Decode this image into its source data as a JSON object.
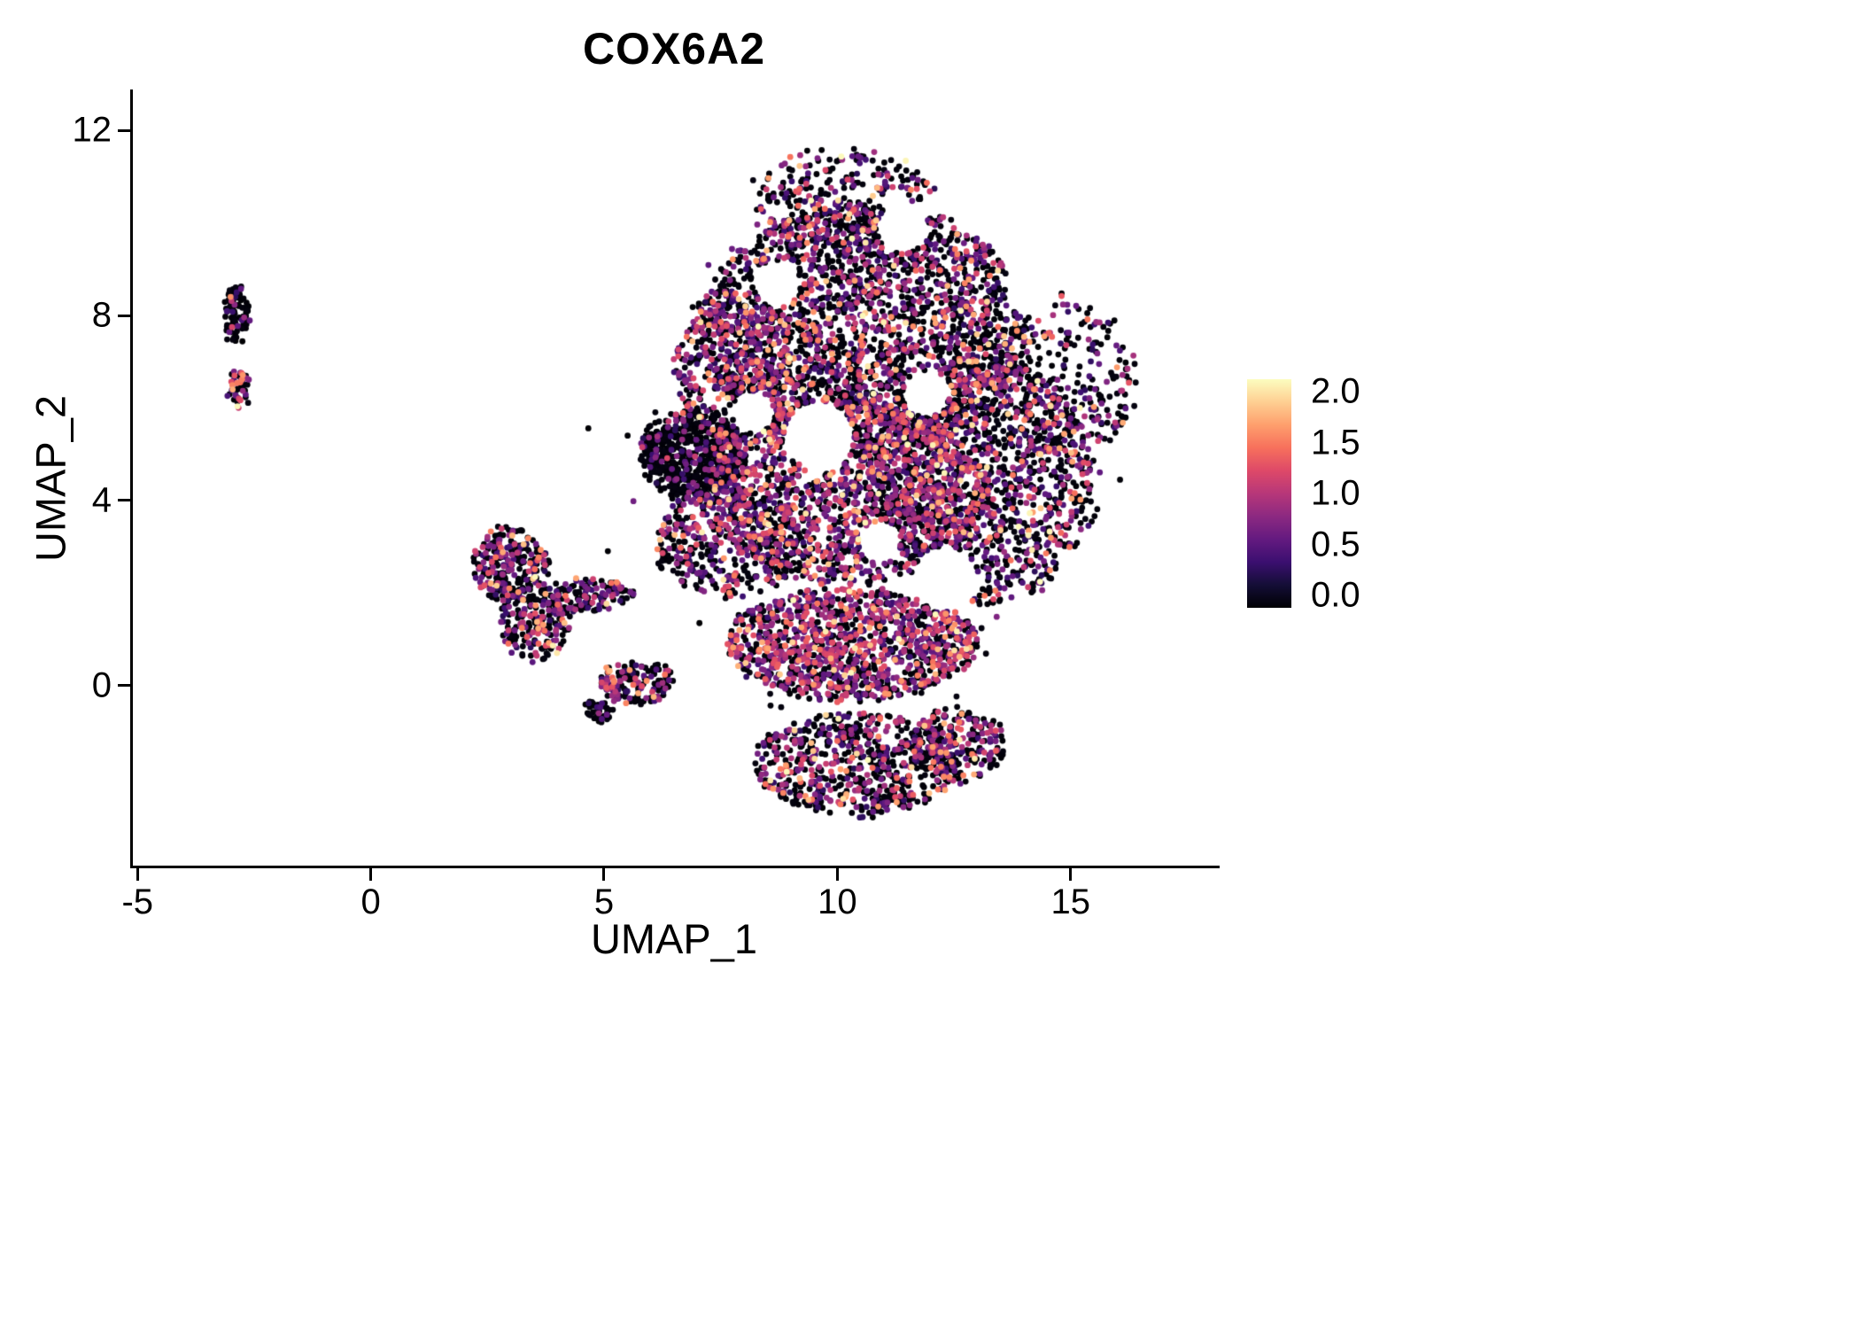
{
  "page": {
    "background": "#ffffff"
  },
  "chart_data": {
    "type": "scatter",
    "title": "COX6A2",
    "xlabel": "UMAP_1",
    "ylabel": "UMAP_2",
    "xlim": [
      -5.1,
      18.1
    ],
    "ylim": [
      -3.9,
      12.85
    ],
    "grid": false,
    "xticks": [
      {
        "value": -5,
        "label": "-5"
      },
      {
        "value": 0,
        "label": "0"
      },
      {
        "value": 5,
        "label": "5"
      },
      {
        "value": 10,
        "label": "10"
      },
      {
        "value": 15,
        "label": "15"
      }
    ],
    "yticks": [
      {
        "value": 0,
        "label": "0"
      },
      {
        "value": 4,
        "label": "4"
      },
      {
        "value": 8,
        "label": "8"
      },
      {
        "value": 12,
        "label": "12"
      }
    ],
    "colorbar": {
      "position": "right",
      "min": 0,
      "max": 2,
      "labels": [
        {
          "value": 2.0,
          "label": "2.0"
        },
        {
          "value": 1.5,
          "label": "1.5"
        },
        {
          "value": 1.0,
          "label": "1.0"
        },
        {
          "value": 0.5,
          "label": "0.5"
        },
        {
          "value": 0.0,
          "label": "0.0"
        }
      ]
    },
    "palette": {
      "name": "magma",
      "stops": [
        "#000004",
        "#140e36",
        "#3b0f70",
        "#641a80",
        "#8c2981",
        "#b73779",
        "#de4968",
        "#f7705c",
        "#fe9f6d",
        "#fecf92",
        "#fcfdbf"
      ]
    },
    "point_radius_px": 3.4,
    "seed": 20240521,
    "expression_mixes": {
      "default": [
        [
          0.56,
          0.0,
          0.05
        ],
        [
          0.26,
          0.3,
          0.85
        ],
        [
          0.11,
          0.85,
          1.25
        ],
        [
          0.05,
          1.25,
          1.65
        ],
        [
          0.02,
          1.65,
          2.0
        ]
      ],
      "dark": [
        [
          0.82,
          0.0,
          0.05
        ],
        [
          0.13,
          0.3,
          0.8
        ],
        [
          0.04,
          0.8,
          1.2
        ],
        [
          0.01,
          1.2,
          1.6
        ]
      ],
      "rich": [
        [
          0.38,
          0.0,
          0.05
        ],
        [
          0.34,
          0.35,
          0.9
        ],
        [
          0.2,
          0.9,
          1.3
        ],
        [
          0.06,
          1.3,
          1.7
        ],
        [
          0.02,
          1.7,
          2.0
        ]
      ]
    },
    "clusters": [
      {
        "name": "main-top",
        "n": 2500,
        "cx": 10.6,
        "cy": 7.7,
        "rx": 3.5,
        "ry": 2.7,
        "mix": "default"
      },
      {
        "name": "main-top-crown",
        "n": 300,
        "cx": 10.1,
        "cy": 10.5,
        "rx": 2.0,
        "ry": 1.1,
        "mix": "default"
      },
      {
        "name": "main-mid",
        "n": 1600,
        "cx": 10.2,
        "cy": 4.2,
        "rx": 3.0,
        "ry": 2.0,
        "mix": "rich"
      },
      {
        "name": "main-right",
        "n": 1300,
        "cx": 13.2,
        "cy": 4.4,
        "rx": 2.3,
        "ry": 2.7,
        "mix": "default"
      },
      {
        "name": "right-east",
        "n": 260,
        "cx": 14.9,
        "cy": 6.6,
        "rx": 1.5,
        "ry": 1.9,
        "mix": "default"
      },
      {
        "name": "main-lower-band",
        "n": 1200,
        "cx": 10.3,
        "cy": 0.9,
        "rx": 2.7,
        "ry": 1.2,
        "mix": "rich"
      },
      {
        "name": "bottom-lobe",
        "n": 700,
        "cx": 10.4,
        "cy": -1.7,
        "rx": 2.2,
        "ry": 1.1,
        "mix": "default"
      },
      {
        "name": "bottom-lobe-right",
        "n": 240,
        "cx": 12.6,
        "cy": -1.3,
        "rx": 1.0,
        "ry": 0.8,
        "mix": "default"
      },
      {
        "name": "left-dark-clump",
        "n": 620,
        "cx": 6.9,
        "cy": 5.0,
        "rx": 1.1,
        "ry": 0.95,
        "mix": "dark"
      },
      {
        "name": "left-upper-fill",
        "n": 420,
        "cx": 7.8,
        "cy": 6.9,
        "rx": 1.3,
        "ry": 1.7,
        "mix": "default"
      },
      {
        "name": "left-mid-fill",
        "n": 420,
        "cx": 7.7,
        "cy": 3.1,
        "rx": 1.6,
        "ry": 1.2,
        "mix": "default"
      },
      {
        "name": "sparse-halo",
        "n": 170,
        "cx": 10.4,
        "cy": 4.8,
        "rx": 5.9,
        "ry": 5.6,
        "mix": "dark"
      },
      {
        "name": "midleft-top",
        "n": 260,
        "cx": 3.0,
        "cy": 2.6,
        "rx": 0.8,
        "ry": 0.8,
        "mix": "default"
      },
      {
        "name": "midleft-low",
        "n": 210,
        "cx": 3.5,
        "cy": 1.35,
        "rx": 0.75,
        "ry": 0.8,
        "mix": "default"
      },
      {
        "name": "midleft-arm",
        "n": 120,
        "cx": 4.7,
        "cy": 1.95,
        "rx": 0.95,
        "ry": 0.35,
        "mix": "default"
      },
      {
        "name": "small-bottom",
        "n": 150,
        "cx": 5.7,
        "cy": 0.05,
        "rx": 0.8,
        "ry": 0.45,
        "mix": "default"
      },
      {
        "name": "small-dark-spot",
        "n": 45,
        "cx": 4.85,
        "cy": -0.55,
        "rx": 0.3,
        "ry": 0.22,
        "mix": "dark"
      },
      {
        "name": "far-left-top",
        "n": 95,
        "cx": -2.9,
        "cy": 8.0,
        "rx": 0.24,
        "ry": 0.65,
        "mix": "dark"
      },
      {
        "name": "far-left-tip",
        "n": 48,
        "cx": -2.83,
        "cy": 6.4,
        "rx": 0.2,
        "ry": 0.4,
        "mix": "rich"
      }
    ],
    "holes": [
      {
        "x": 9.6,
        "y": 5.4,
        "r": 0.75
      },
      {
        "x": 12.3,
        "y": 2.3,
        "r": 0.7
      },
      {
        "x": 11.4,
        "y": 9.9,
        "r": 0.55
      },
      {
        "x": 8.7,
        "y": 8.7,
        "r": 0.5
      },
      {
        "x": 14.2,
        "y": 8.6,
        "r": 0.6
      },
      {
        "x": 11.9,
        "y": 6.3,
        "r": 0.5
      },
      {
        "x": 13.3,
        "y": -0.3,
        "r": 0.45
      },
      {
        "x": 8.2,
        "y": 5.9,
        "r": 0.45
      },
      {
        "x": 15.2,
        "y": 2.5,
        "r": 0.5
      },
      {
        "x": 10.9,
        "y": 3.1,
        "r": 0.45
      }
    ]
  }
}
